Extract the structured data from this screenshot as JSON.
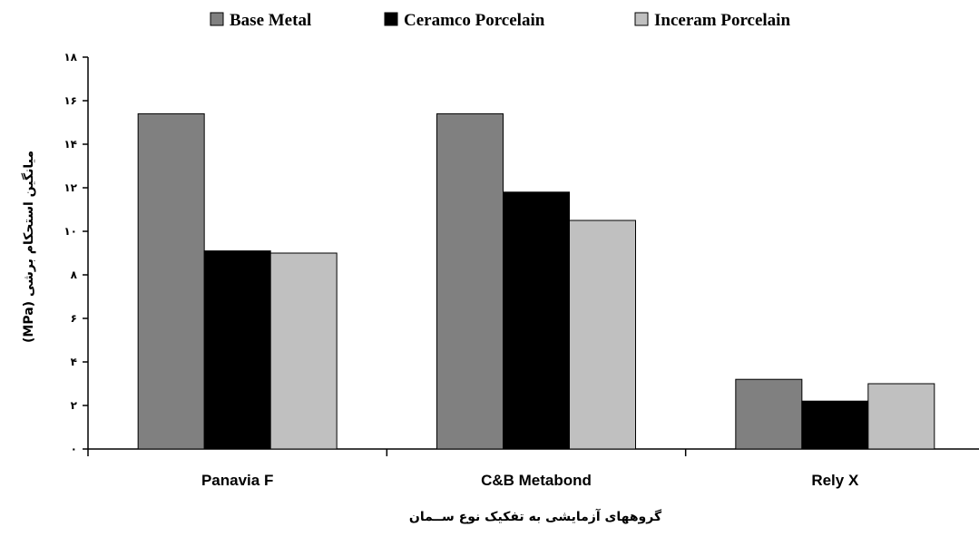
{
  "chart_data": {
    "type": "bar",
    "categories": [
      "Panavia F",
      "C&B Metabond",
      "Rely X"
    ],
    "series": [
      {
        "name": "Base Metal",
        "values": [
          15.4,
          15.4,
          3.2
        ],
        "color": "#808080"
      },
      {
        "name": "Ceramco Porcelain",
        "values": [
          9.1,
          11.8,
          2.2
        ],
        "color": "#000000"
      },
      {
        "name": "Inceram Porcelain",
        "values": [
          9.0,
          10.5,
          3.0
        ],
        "color": "#c0c0c0"
      }
    ],
    "ylim": [
      0,
      18
    ],
    "yticks": [
      0,
      2,
      4,
      6,
      8,
      10,
      12,
      14,
      16,
      18
    ],
    "ytick_labels": [
      "۰",
      "۲",
      "۴",
      "۶",
      "۸",
      "۱۰",
      "۱۲",
      "۱۴",
      "۱۶",
      "۱۸"
    ],
    "ylabel": "میانگین استحکام برشی (MPa)",
    "xlabel": "گروههای آزمایشی به تفکیک نوع ســمان",
    "legend_position": "top",
    "grid": false
  }
}
